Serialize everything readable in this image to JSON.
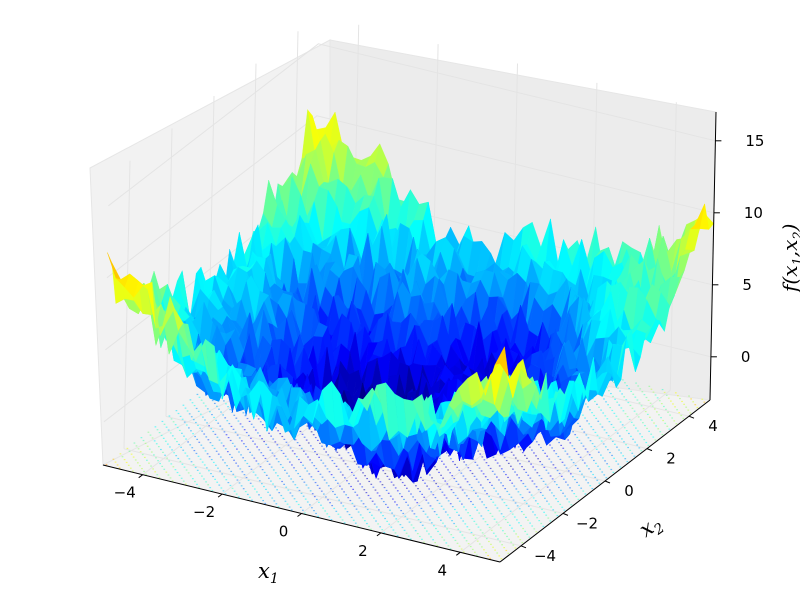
{
  "chart_data": {
    "type": "surface",
    "title": "",
    "xlabel": "x1",
    "ylabel": "x2",
    "zlabel": "f(x1,x2)",
    "xlim": [
      -5,
      5
    ],
    "ylim": [
      -5,
      5
    ],
    "zlim": [
      -3,
      17
    ],
    "x_ticks": [
      "−4",
      "−2",
      "0",
      "2",
      "4"
    ],
    "y_ticks": [
      "−4",
      "−2",
      "0",
      "2",
      "4"
    ],
    "z_ticks": [
      "0",
      "5",
      "10",
      "15"
    ],
    "x_tick_values": [
      -4,
      -2,
      0,
      2,
      4
    ],
    "y_tick_values": [
      -4,
      -2,
      0,
      2,
      4
    ],
    "z_tick_values": [
      0,
      5,
      10,
      15
    ],
    "colormap": "jet",
    "grid": true,
    "contour_projection": "floor",
    "surface_description": "noisy bowl-shaped surface, minimum near (0,0) around -2, rising to about 17 at the corners",
    "noise_amplitude": 1.8
  }
}
